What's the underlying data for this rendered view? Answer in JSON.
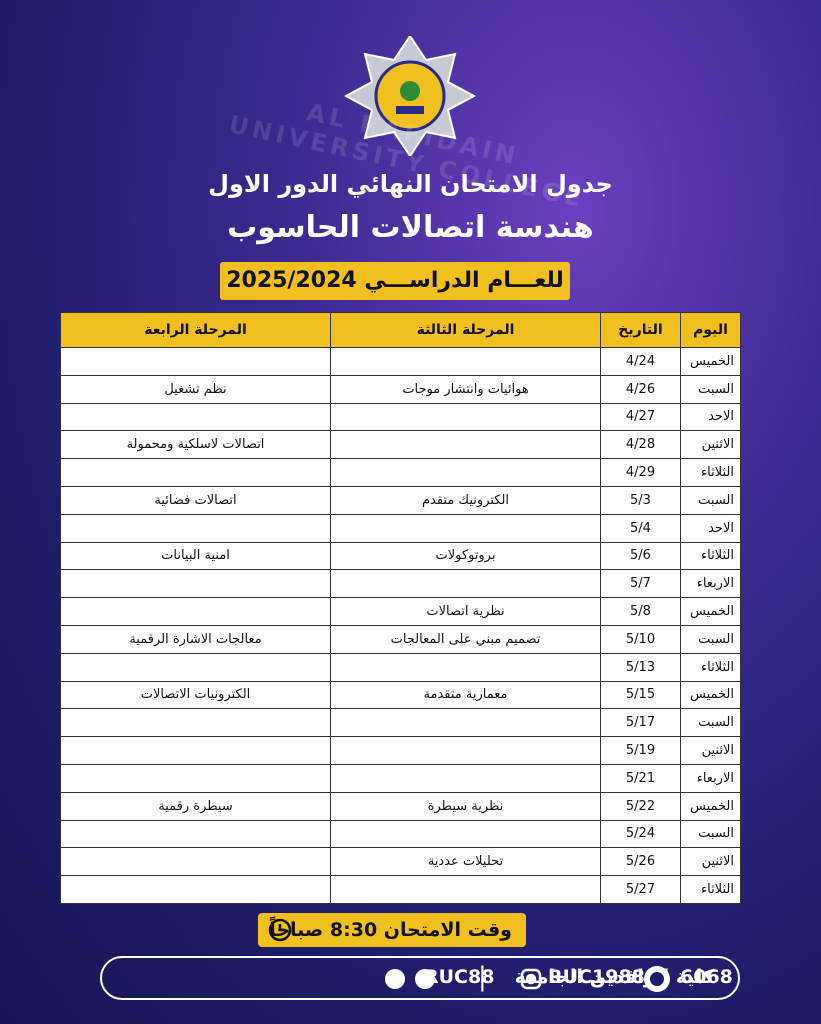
{
  "header": {
    "watermark": "AL RAFIDAIN UNIVERSITY COLLEGE",
    "title": "جدول الامتحان النهائي الدور الاول",
    "subtitle": "هندسة اتصالات الحاسوب",
    "year_banner": "للعـــام الدراســـي 2025/2024"
  },
  "table": {
    "headers": [
      "اليوم",
      "التاريخ",
      "المرحلة الثالثة",
      "المرحلة الرابعة"
    ],
    "rows": [
      {
        "day": "الخميس",
        "date": "4/24"
      },
      {
        "day": "السبت",
        "date": "4/26",
        "stage3": "هوائيات وانتشار موجات",
        "stage4": "نظم تشغيل"
      },
      {
        "day": "الاحد",
        "date": "4/27"
      },
      {
        "day": "الاثنين",
        "date": "4/28",
        "stage4": "اتصالات لاسلكية ومحمولة"
      },
      {
        "day": "الثلاثاء",
        "date": "4/29"
      },
      {
        "day": "السبت",
        "date": "5/3",
        "stage3": "الكترونيك متقدم",
        "stage4": "اتصالات فضائية"
      },
      {
        "day": "الاحد",
        "date": "5/4"
      },
      {
        "day": "الثلاثاء",
        "date": "5/6",
        "stage3": "بروتوكولات",
        "stage4": "امنية البيانات"
      },
      {
        "day": "الاربعاء",
        "date": "5/7"
      },
      {
        "day": "الخميس",
        "date": "5/8",
        "stage3": "نظرية اتصالات"
      },
      {
        "day": "السبت",
        "date": "5/10",
        "stage3": "تصميم مبني على المعالجات",
        "stage4": "معالجات الاشارة الرقمية"
      },
      {
        "day": "الثلاثاء",
        "date": "5/13"
      },
      {
        "day": "الخميس",
        "date": "5/15",
        "stage3": "معمارية متقدمة",
        "stage4": "الكترونيات الاتصالات"
      },
      {
        "day": "السبت",
        "date": "5/17"
      },
      {
        "day": "الاثنين",
        "date": "5/19"
      },
      {
        "day": "الاربعاء",
        "date": "5/21"
      },
      {
        "day": "الخميس",
        "date": "5/22",
        "stage3": "نظرية سيطرة",
        "stage4": "سيطرة رقمية"
      },
      {
        "day": "السبت",
        "date": "5/24"
      },
      {
        "day": "الاثنين",
        "date": "5/26",
        "stage3": "تحليلات عددية"
      },
      {
        "day": "الثلاثاء",
        "date": "5/27"
      }
    ]
  },
  "exam_time": "وقت الامتحان 8:30 صباحاً",
  "footer": {
    "college": "كلية الرافدين الجامعة",
    "facebook": "RUC88",
    "instagram": "RUC1988",
    "phone": "6068"
  }
}
